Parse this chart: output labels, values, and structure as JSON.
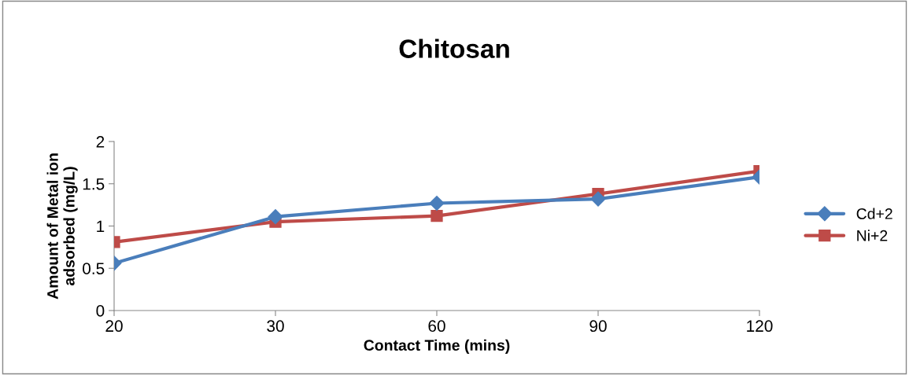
{
  "chart_data": {
    "type": "line",
    "title": "Chitosan",
    "xlabel": "Contact Time (mins)",
    "ylabel": "Amount of Metal ion\nadsorbed (mg/L)",
    "categories": [
      "20",
      "30",
      "60",
      "90",
      "120"
    ],
    "series": [
      {
        "name": "Cd+2",
        "color": "#4a7ebb",
        "marker": "diamond",
        "values": [
          0.56,
          1.11,
          1.27,
          1.32,
          1.58
        ]
      },
      {
        "name": "Ni+2",
        "color": "#be4b48",
        "marker": "square",
        "values": [
          0.81,
          1.05,
          1.12,
          1.38,
          1.65
        ]
      }
    ],
    "ylim": [
      0,
      2
    ],
    "yticks": [
      0,
      0.5,
      1,
      1.5,
      2
    ],
    "grid": false,
    "legend": "right",
    "line_style": "solid"
  }
}
